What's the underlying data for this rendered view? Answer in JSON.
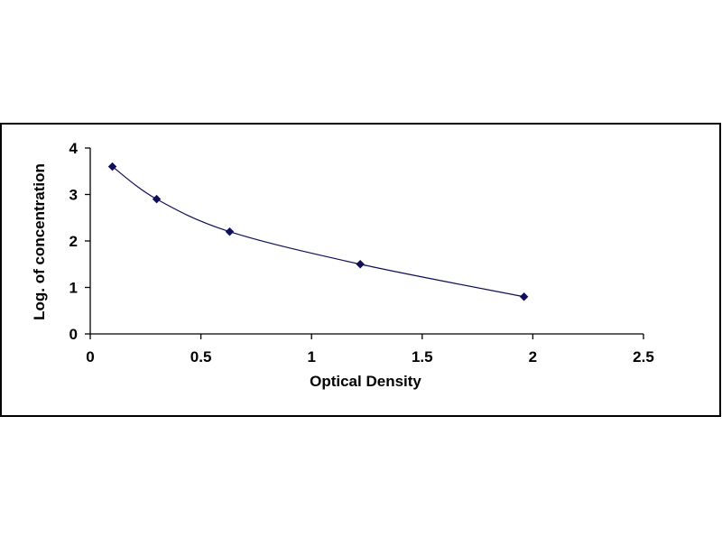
{
  "chart_data": {
    "type": "scatter",
    "xlabel": "Optical Density",
    "ylabel": "Log. of concentration",
    "xlim": [
      0,
      2.5
    ],
    "ylim": [
      0,
      4
    ],
    "x_ticks": [
      "0",
      "0.5",
      "1",
      "1.5",
      "2",
      "2.5"
    ],
    "y_ticks": [
      "0",
      "1",
      "2",
      "3",
      "4"
    ],
    "grid": false,
    "legend": "none",
    "marker": "diamond",
    "trendline": "smooth",
    "series": [
      {
        "points": [
          {
            "x": 0.1,
            "y": 3.6
          },
          {
            "x": 0.3,
            "y": 2.9
          },
          {
            "x": 0.63,
            "y": 2.2
          },
          {
            "x": 1.22,
            "y": 1.5
          },
          {
            "x": 1.96,
            "y": 0.8
          }
        ]
      }
    ],
    "colors": {
      "marker": "#10105a",
      "line": "#10105a",
      "axis": "#000000",
      "frame": "#000000"
    }
  }
}
